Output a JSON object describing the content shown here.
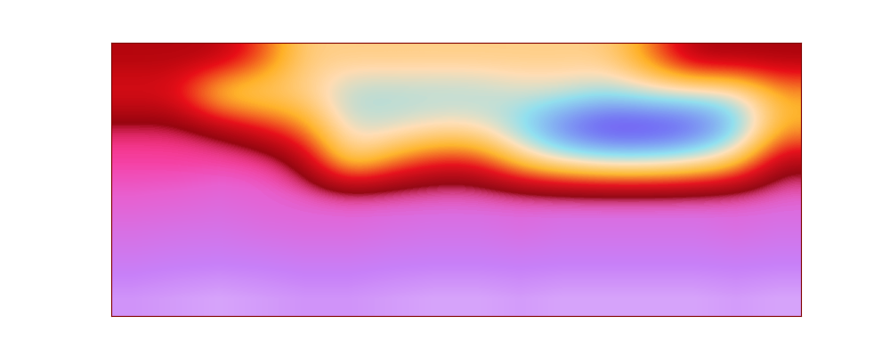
{
  "chart_data": {
    "type": "heatmap",
    "tick_labels": false,
    "color_range": [
      0,
      1
    ],
    "cells": [
      [
        0.95,
        0.92,
        0.9,
        0.9,
        0.9,
        0.92,
        0.93,
        0.9,
        0.9,
        0.88,
        0.88,
        0.9,
        0.9,
        0.88,
        0.9,
        0.92
      ],
      [
        0.85,
        0.85,
        0.8,
        0.82,
        0.85,
        0.9,
        0.88,
        0.82,
        0.8,
        0.8,
        0.8,
        0.82,
        0.8,
        0.8,
        0.82,
        0.8
      ],
      [
        0.78,
        0.78,
        0.75,
        0.78,
        0.8,
        0.85,
        0.82,
        0.78,
        0.75,
        0.75,
        0.75,
        0.78,
        0.75,
        0.75,
        0.78,
        0.75
      ],
      [
        0.72,
        0.72,
        0.7,
        0.72,
        0.75,
        0.78,
        0.75,
        0.72,
        0.7,
        0.7,
        0.7,
        0.72,
        0.7,
        0.7,
        0.72,
        0.7
      ],
      [
        0.6,
        0.58,
        0.55,
        0.58,
        0.6,
        0.62,
        0.58,
        0.55,
        0.55,
        0.58,
        0.55,
        0.55,
        0.55,
        0.55,
        0.58,
        0.55
      ],
      [
        0.48,
        0.46,
        0.45,
        0.48,
        0.5,
        0.5,
        0.47,
        0.45,
        0.45,
        0.48,
        0.45,
        0.45,
        0.45,
        0.45,
        0.48,
        0.45
      ],
      [
        0.38,
        0.36,
        0.35,
        0.36,
        0.38,
        0.38,
        0.36,
        0.35,
        0.35,
        0.36,
        0.35,
        0.35,
        0.35,
        0.35,
        0.36,
        0.35
      ],
      [
        0.28,
        0.25,
        0.22,
        0.25,
        0.28,
        0.28,
        0.25,
        0.22,
        0.22,
        0.25,
        0.22,
        0.22,
        0.22,
        0.22,
        0.25,
        0.22
      ]
    ],
    "overlay": [
      [
        0.12,
        0.12,
        0.12,
        0.25,
        0.45,
        0.45,
        0.45,
        0.45,
        0.45,
        0.45,
        0.45,
        0.45,
        0.3,
        0.1,
        0.1,
        0.1
      ],
      [
        0.2,
        0.2,
        0.45,
        0.45,
        0.45,
        0.6,
        0.6,
        0.6,
        0.6,
        0.55,
        0.55,
        0.6,
        0.55,
        0.55,
        0.55,
        0.35
      ],
      [
        0.05,
        0.05,
        0.1,
        0.2,
        0.3,
        0.55,
        0.55,
        0.5,
        0.5,
        0.65,
        0.85,
        0.95,
        0.95,
        0.9,
        0.7,
        0.35
      ],
      [
        0.0,
        0.0,
        0.0,
        0.0,
        0.1,
        0.45,
        0.3,
        0.2,
        0.2,
        0.4,
        0.5,
        0.55,
        0.55,
        0.5,
        0.4,
        0.1
      ],
      [
        0.0,
        0.0,
        0.0,
        0.0,
        0.0,
        0.0,
        0.0,
        0.0,
        0.0,
        0.0,
        0.0,
        0.0,
        0.0,
        0.0,
        0.0,
        0.0
      ],
      [
        0.0,
        0.0,
        0.0,
        0.0,
        0.0,
        0.0,
        0.0,
        0.0,
        0.0,
        0.0,
        0.0,
        0.0,
        0.0,
        0.0,
        0.0,
        0.0
      ],
      [
        0.0,
        0.0,
        0.0,
        0.0,
        0.0,
        0.0,
        0.0,
        0.0,
        0.0,
        0.0,
        0.0,
        0.0,
        0.0,
        0.0,
        0.0,
        0.0
      ],
      [
        0.0,
        0.0,
        0.0,
        0.0,
        0.0,
        0.0,
        0.0,
        0.0,
        0.0,
        0.0,
        0.0,
        0.0,
        0.0,
        0.0,
        0.0,
        0.0
      ]
    ]
  }
}
